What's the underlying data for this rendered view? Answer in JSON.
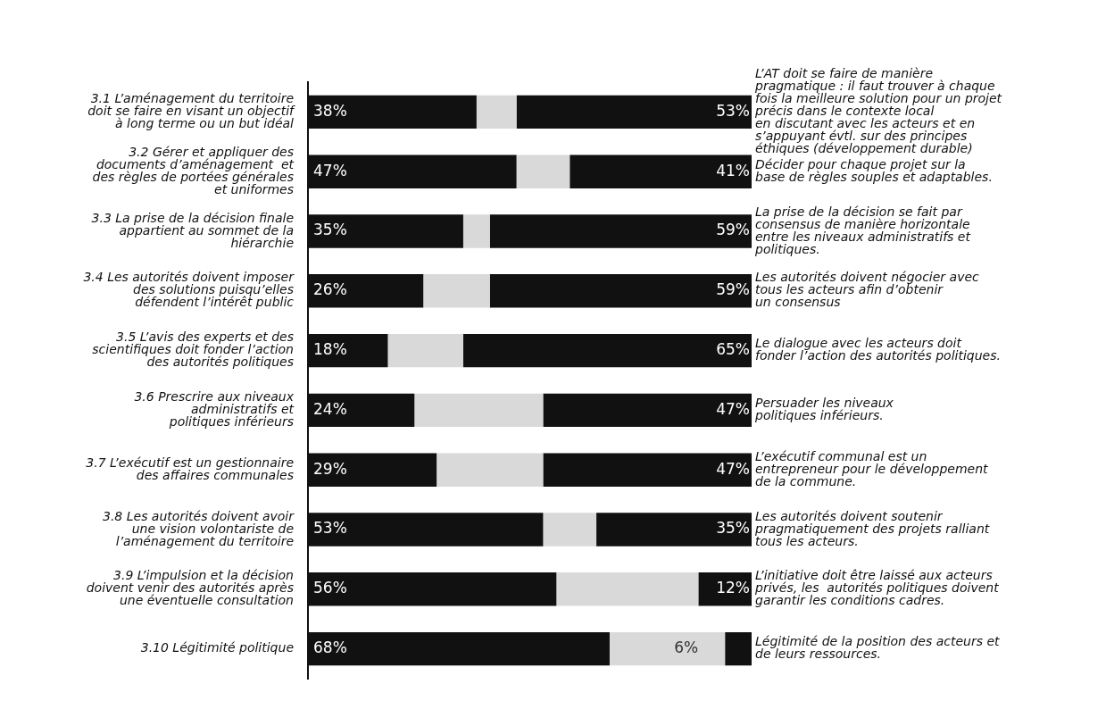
{
  "chart_data": {
    "type": "bar",
    "orientation": "horizontal",
    "stacked": true,
    "categories": [
      "3.1 L’aménagement du territoire\ndoit se faire en visant un objectif\nà long terme ou un but idéal",
      "3.2 Gérer et appliquer des\ndocuments d’aménagement  et\ndes règles de portées générales\net uniformes",
      "3.3 La prise de la décision finale\nappartient au sommet de la\nhiérarchie",
      "3.4 Les autorités doivent imposer\ndes solutions puisqu’elles\ndéfendent l’intérêt public",
      "3.5 L’avis des experts et des\nscientifiques doit fonder l’action\ndes autorités politiques",
      "3.6 Prescrire aux niveaux\nadministratifs et\npolitiques inférieurs",
      "3.7 L’exécutif est un gestionnaire\ndes affaires communales",
      "3.8 Les autorités doivent avoir\nune vision volontariste de\nl’aménagement du territoire",
      "3.9 L’impulsion et la décision\ndoivent venir des autorités après\nune éventuelle consultation",
      "3.10 Légitimité politique"
    ],
    "y2_categories": [
      "L’AT doit se faire de manière\npragmatique : il faut trouver à chaque\nfois la meilleure solution pour un projet\nprécis dans le contexte local\nen discutant avec les acteurs et en\ns’appuyant évtl. sur des principes\néthiques (développement durable)",
      "Décider pour chaque projet sur la\nbase de règles souples et adaptables.",
      "La prise de la décision se fait par\nconsensus de manière horizontale\nentre les niveaux administratifs et\npolitiques.",
      "Les autorités doivent négocier avec\ntous les acteurs afin d’obtenir\nun consensus",
      "Le dialogue avec les acteurs doit\nfonder l’action des autorités politiques.",
      "Persuader les niveaux\npolitiques inférieurs.",
      "L’exécutif communal est un\nentrepreneur pour le développement\nde la commune.",
      "Les autorités doivent soutenir\npragmatiquement des projets ralliant\ntous les acteurs.",
      "L’initiative doit être laissé aux acteurs\nprivés, les  autorités politiques doivent\ngarantir les conditions cadres.",
      "Légitimité de la position des acteurs et\nde leurs ressources."
    ],
    "series": [
      {
        "color": "#111111",
        "values": [
          38,
          47,
          35,
          26,
          18,
          24,
          29,
          53,
          56,
          68
        ],
        "value_labels": [
          "38%",
          "47%",
          "35%",
          "26%",
          "18%",
          "24%",
          "29%",
          "53%",
          "56%",
          "68%"
        ]
      },
      {
        "color": "#d9d9d9",
        "values": [
          9,
          12,
          6,
          15,
          17,
          29,
          24,
          12,
          32,
          26
        ],
        "value_labels": [
          null,
          null,
          null,
          null,
          null,
          null,
          null,
          null,
          null,
          null
        ]
      },
      {
        "color": "#111111",
        "values": [
          53,
          41,
          59,
          59,
          65,
          47,
          47,
          35,
          12,
          6
        ],
        "value_labels": [
          "53%",
          "41%",
          "59%",
          "59%",
          "65%",
          "47%",
          "47%",
          "35%",
          "12%",
          "6%"
        ]
      }
    ],
    "xlim": [
      0,
      100
    ],
    "tick_labels": "y",
    "grid": false,
    "legend": false
  }
}
